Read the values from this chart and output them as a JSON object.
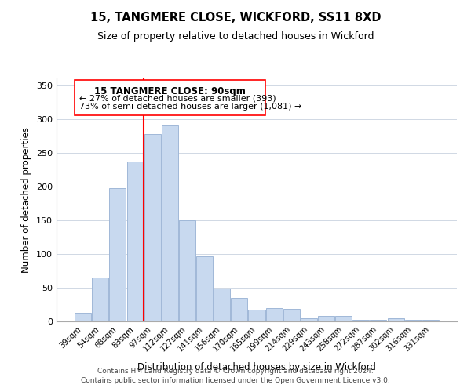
{
  "title": "15, TANGMERE CLOSE, WICKFORD, SS11 8XD",
  "subtitle": "Size of property relative to detached houses in Wickford",
  "xlabel": "Distribution of detached houses by size in Wickford",
  "ylabel": "Number of detached properties",
  "categories": [
    "39sqm",
    "54sqm",
    "68sqm",
    "83sqm",
    "97sqm",
    "112sqm",
    "127sqm",
    "141sqm",
    "156sqm",
    "170sqm",
    "185sqm",
    "199sqm",
    "214sqm",
    "229sqm",
    "243sqm",
    "258sqm",
    "272sqm",
    "287sqm",
    "302sqm",
    "316sqm",
    "331sqm"
  ],
  "values": [
    13,
    65,
    198,
    237,
    278,
    290,
    150,
    96,
    49,
    35,
    18,
    20,
    19,
    5,
    8,
    8,
    2,
    2,
    5,
    2,
    2
  ],
  "bar_color": "#c8d9ef",
  "bar_edge_color": "#a0b8d8",
  "annotation_title": "15 TANGMERE CLOSE: 90sqm",
  "annotation_line1": "← 27% of detached houses are smaller (393)",
  "annotation_line2": "73% of semi-detached houses are larger (1,081) →",
  "footer1": "Contains HM Land Registry data © Crown copyright and database right 2024.",
  "footer2": "Contains public sector information licensed under the Open Government Licence v3.0.",
  "ylim": [
    0,
    360
  ],
  "yticks": [
    0,
    50,
    100,
    150,
    200,
    250,
    300,
    350
  ],
  "background_color": "#ffffff",
  "grid_color": "#d0d8e4"
}
